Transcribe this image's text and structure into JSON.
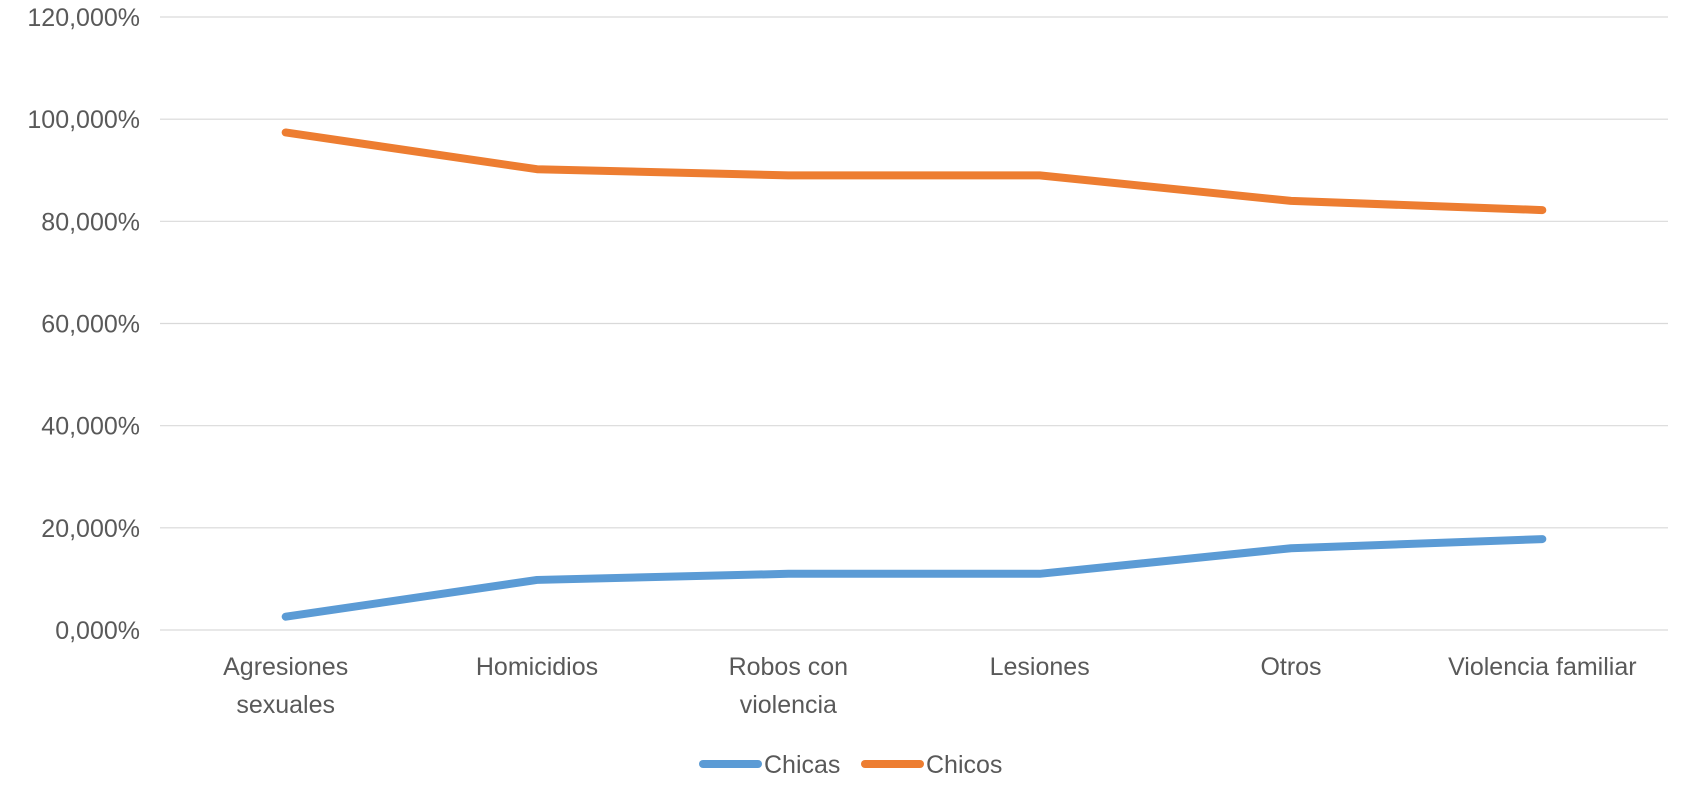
{
  "chart_data": {
    "type": "line",
    "categories": [
      [
        "Agresiones",
        "sexuales"
      ],
      [
        "Homicidios"
      ],
      [
        "Robos con",
        "violencia"
      ],
      [
        "Lesiones"
      ],
      [
        "Otros"
      ],
      [
        "Violencia familiar"
      ]
    ],
    "series": [
      {
        "name": "Chicas",
        "color": "#5b9bd5",
        "values": [
          2.6,
          9.8,
          11.0,
          11.0,
          16.0,
          17.8
        ]
      },
      {
        "name": "Chicos",
        "color": "#ed7d31",
        "values": [
          97.4,
          90.2,
          89.0,
          89.0,
          84.0,
          82.2
        ]
      }
    ],
    "ylim": [
      0,
      120
    ],
    "yticks": [
      0,
      20,
      40,
      60,
      80,
      100,
      120
    ],
    "ytick_labels": [
      "0,000%",
      "20,000%",
      "40,000%",
      "60,000%",
      "80,000%",
      "100,000%",
      "120,000%"
    ],
    "grid": true,
    "legend": "bottom-center"
  }
}
